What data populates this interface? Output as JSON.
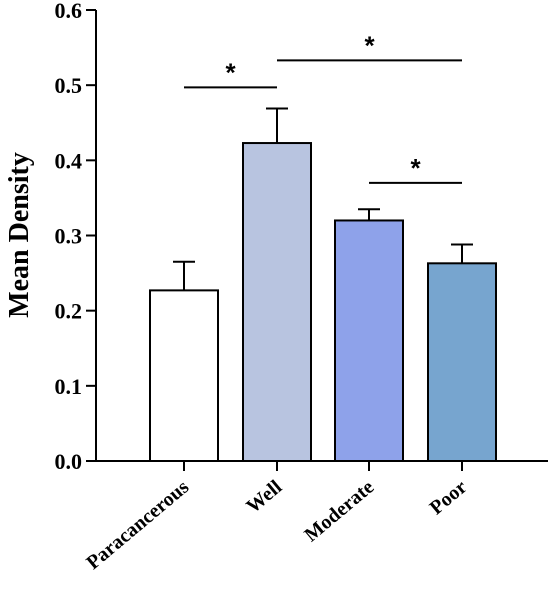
{
  "chart_data": {
    "type": "bar",
    "categories": [
      "Paracancerous",
      "Well",
      "Moderate",
      "Poor"
    ],
    "values": [
      0.227,
      0.423,
      0.32,
      0.263
    ],
    "errors": [
      0.038,
      0.046,
      0.015,
      0.025
    ],
    "colors": [
      "#ffffff",
      "#b8c4e0",
      "#8ea2ea",
      "#77a5cf"
    ],
    "ylabel": "Mean Density",
    "xlabel": "",
    "ylim": [
      0,
      0.6
    ],
    "yticks": [
      "0.0",
      "0.1",
      "0.2",
      "0.3",
      "0.4",
      "0.5",
      "0.6"
    ],
    "significance": [
      {
        "from": "Paracancerous",
        "to": "Well",
        "y": 0.497,
        "label": "*"
      },
      {
        "from": "Well",
        "to": "Poor",
        "y": 0.533,
        "label": "*"
      },
      {
        "from": "Moderate",
        "to": "Poor",
        "y": 0.37,
        "label": "*"
      }
    ],
    "grid": false
  }
}
